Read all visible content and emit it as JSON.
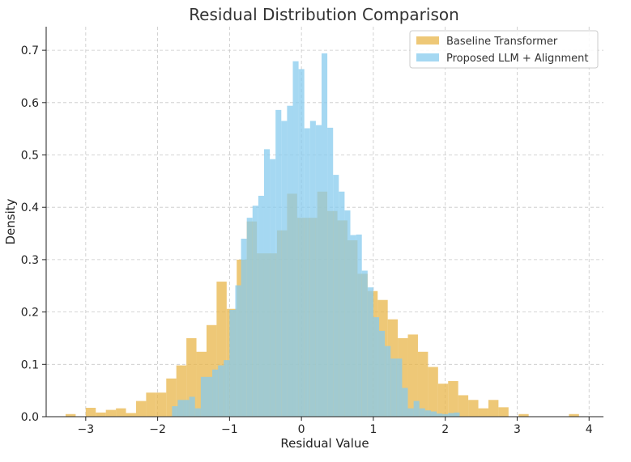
{
  "chart_data": {
    "type": "histogram",
    "title": "Residual Distribution Comparison",
    "xlabel": "Residual Value",
    "ylabel": "Density",
    "xlim": [
      -3.55,
      4.2
    ],
    "ylim": [
      0,
      0.745
    ],
    "xticks": [
      -3,
      -2,
      -1,
      0,
      1,
      2,
      3,
      4
    ],
    "xtick_labels": [
      "−3",
      "−2",
      "−1",
      "0",
      "1",
      "2",
      "3",
      "4"
    ],
    "yticks": [
      0.0,
      0.1,
      0.2,
      0.3,
      0.4,
      0.5,
      0.6,
      0.7
    ],
    "ytick_labels": [
      "0.0",
      "0.1",
      "0.2",
      "0.3",
      "0.4",
      "0.5",
      "0.6",
      "0.7"
    ],
    "grid": true,
    "legend_position": "top-right",
    "series": [
      {
        "name": "Baseline Transformer",
        "color": "#e8b64a",
        "bins": [
          [
            -3.28,
            -3.14,
            0.005
          ],
          [
            -3.14,
            -3.0,
            0.0
          ],
          [
            -3.0,
            -2.86,
            0.017
          ],
          [
            -2.86,
            -2.72,
            0.008
          ],
          [
            -2.72,
            -2.58,
            0.013
          ],
          [
            -2.58,
            -2.44,
            0.016
          ],
          [
            -2.44,
            -2.3,
            0.007
          ],
          [
            -2.3,
            -2.16,
            0.03
          ],
          [
            -2.16,
            -2.02,
            0.046
          ],
          [
            -2.02,
            -1.88,
            0.046
          ],
          [
            -1.88,
            -1.74,
            0.073
          ],
          [
            -1.74,
            -1.6,
            0.098
          ],
          [
            -1.6,
            -1.46,
            0.15
          ],
          [
            -1.46,
            -1.32,
            0.124
          ],
          [
            -1.32,
            -1.18,
            0.175
          ],
          [
            -1.18,
            -1.04,
            0.258
          ],
          [
            -1.04,
            -0.9,
            0.206
          ],
          [
            -0.9,
            -0.76,
            0.3
          ],
          [
            -0.76,
            -0.62,
            0.373
          ],
          [
            -0.62,
            -0.48,
            0.312
          ],
          [
            -0.48,
            -0.34,
            0.312
          ],
          [
            -0.34,
            -0.2,
            0.356
          ],
          [
            -0.2,
            -0.06,
            0.426
          ],
          [
            -0.06,
            0.08,
            0.38
          ],
          [
            0.08,
            0.22,
            0.38
          ],
          [
            0.22,
            0.36,
            0.43
          ],
          [
            0.36,
            0.5,
            0.393
          ],
          [
            0.5,
            0.64,
            0.375
          ],
          [
            0.64,
            0.78,
            0.337
          ],
          [
            0.78,
            0.92,
            0.273
          ],
          [
            0.92,
            1.06,
            0.24
          ],
          [
            1.06,
            1.2,
            0.223
          ],
          [
            1.2,
            1.34,
            0.186
          ],
          [
            1.34,
            1.48,
            0.15
          ],
          [
            1.48,
            1.62,
            0.157
          ],
          [
            1.62,
            1.76,
            0.124
          ],
          [
            1.76,
            1.9,
            0.095
          ],
          [
            1.9,
            2.04,
            0.063
          ],
          [
            2.04,
            2.18,
            0.068
          ],
          [
            2.18,
            2.32,
            0.041
          ],
          [
            2.32,
            2.46,
            0.032
          ],
          [
            2.46,
            2.6,
            0.016
          ],
          [
            2.6,
            2.74,
            0.032
          ],
          [
            2.74,
            2.88,
            0.018
          ],
          [
            2.88,
            3.02,
            0.0
          ],
          [
            3.02,
            3.16,
            0.005
          ],
          [
            3.16,
            3.3,
            0.0
          ],
          [
            3.3,
            3.44,
            0.0
          ],
          [
            3.44,
            3.58,
            0.0
          ],
          [
            3.58,
            3.72,
            0.0
          ],
          [
            3.72,
            3.86,
            0.005
          ]
        ]
      },
      {
        "name": "Proposed LLM + Alignment",
        "color": "#87cbee",
        "bins": [
          [
            -1.8,
            -1.72,
            0.02
          ],
          [
            -1.72,
            -1.64,
            0.032
          ],
          [
            -1.64,
            -1.56,
            0.032
          ],
          [
            -1.56,
            -1.48,
            0.038
          ],
          [
            -1.48,
            -1.4,
            0.016
          ],
          [
            -1.4,
            -1.32,
            0.076
          ],
          [
            -1.32,
            -1.24,
            0.076
          ],
          [
            -1.24,
            -1.16,
            0.09
          ],
          [
            -1.16,
            -1.08,
            0.098
          ],
          [
            -1.08,
            -1.0,
            0.108
          ],
          [
            -1.0,
            -0.92,
            0.204
          ],
          [
            -0.92,
            -0.84,
            0.251
          ],
          [
            -0.84,
            -0.76,
            0.34
          ],
          [
            -0.76,
            -0.68,
            0.38
          ],
          [
            -0.68,
            -0.6,
            0.403
          ],
          [
            -0.6,
            -0.52,
            0.422
          ],
          [
            -0.52,
            -0.44,
            0.511
          ],
          [
            -0.44,
            -0.36,
            0.492
          ],
          [
            -0.36,
            -0.28,
            0.586
          ],
          [
            -0.28,
            -0.2,
            0.565
          ],
          [
            -0.2,
            -0.12,
            0.594
          ],
          [
            -0.12,
            -0.04,
            0.679
          ],
          [
            -0.04,
            0.04,
            0.664
          ],
          [
            0.04,
            0.12,
            0.551
          ],
          [
            0.12,
            0.2,
            0.565
          ],
          [
            0.2,
            0.28,
            0.557
          ],
          [
            0.28,
            0.36,
            0.694
          ],
          [
            0.36,
            0.44,
            0.552
          ],
          [
            0.44,
            0.52,
            0.462
          ],
          [
            0.52,
            0.6,
            0.43
          ],
          [
            0.6,
            0.68,
            0.394
          ],
          [
            0.68,
            0.76,
            0.347
          ],
          [
            0.76,
            0.84,
            0.348
          ],
          [
            0.84,
            0.92,
            0.279
          ],
          [
            0.92,
            1.0,
            0.247
          ],
          [
            1.0,
            1.08,
            0.19
          ],
          [
            1.08,
            1.16,
            0.164
          ],
          [
            1.16,
            1.24,
            0.135
          ],
          [
            1.24,
            1.32,
            0.111
          ],
          [
            1.32,
            1.4,
            0.111
          ],
          [
            1.4,
            1.48,
            0.055
          ],
          [
            1.48,
            1.56,
            0.016
          ],
          [
            1.56,
            1.64,
            0.03
          ],
          [
            1.64,
            1.72,
            0.016
          ],
          [
            1.72,
            1.8,
            0.012
          ],
          [
            1.8,
            1.88,
            0.01
          ],
          [
            1.88,
            1.96,
            0.006
          ],
          [
            1.96,
            2.04,
            0.005
          ],
          [
            2.04,
            2.12,
            0.007
          ],
          [
            2.12,
            2.2,
            0.008
          ]
        ]
      }
    ]
  }
}
